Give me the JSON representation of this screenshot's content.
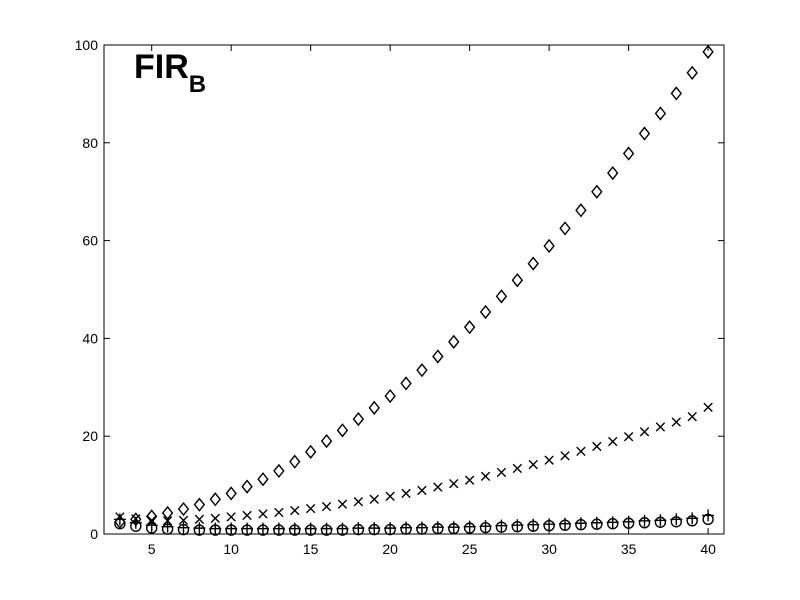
{
  "chart_data": {
    "type": "scatter",
    "title": "FIR",
    "title_subscript": "B",
    "xlim": [
      2,
      41
    ],
    "ylim": [
      0,
      100
    ],
    "x_ticks": [
      5,
      10,
      15,
      20,
      25,
      30,
      35,
      40
    ],
    "y_ticks": [
      0,
      20,
      40,
      60,
      80,
      100
    ],
    "grid": false,
    "x": [
      3,
      4,
      5,
      6,
      7,
      8,
      9,
      10,
      11,
      12,
      13,
      14,
      15,
      16,
      17,
      18,
      19,
      20,
      21,
      22,
      23,
      24,
      25,
      26,
      27,
      28,
      29,
      30,
      31,
      32,
      33,
      34,
      35,
      36,
      37,
      38,
      39,
      40
    ],
    "series": [
      {
        "marker": "diamond",
        "values": [
          2.5,
          3.0,
          3.6,
          4.3,
          5.1,
          6.0,
          7.1,
          8.3,
          9.7,
          11.2,
          12.9,
          14.8,
          16.8,
          19.0,
          21.2,
          23.5,
          25.8,
          28.2,
          30.8,
          33.5,
          36.3,
          39.3,
          42.3,
          45.4,
          48.6,
          51.9,
          55.3,
          58.9,
          62.5,
          66.2,
          70.0,
          73.8,
          77.8,
          81.9,
          86.0,
          90.1,
          94.3,
          98.6
        ]
      },
      {
        "marker": "x",
        "values": [
          3.5,
          3.1,
          2.8,
          2.7,
          2.8,
          3.0,
          3.2,
          3.5,
          3.8,
          4.1,
          4.4,
          4.8,
          5.2,
          5.6,
          6.1,
          6.6,
          7.1,
          7.7,
          8.3,
          8.9,
          9.6,
          10.3,
          11.0,
          11.8,
          12.6,
          13.4,
          14.2,
          15.1,
          16.0,
          16.9,
          17.9,
          18.9,
          19.9,
          20.9,
          21.9,
          22.9,
          24.0,
          25.9
        ]
      },
      {
        "marker": "plus",
        "values": [
          3.0,
          2.3,
          1.8,
          1.5,
          1.3,
          1.2,
          1.1,
          1.1,
          1.1,
          1.1,
          1.1,
          1.1,
          1.1,
          1.1,
          1.1,
          1.2,
          1.2,
          1.2,
          1.3,
          1.3,
          1.4,
          1.4,
          1.5,
          1.6,
          1.7,
          1.8,
          1.9,
          2.0,
          2.1,
          2.2,
          2.3,
          2.4,
          2.5,
          2.7,
          2.8,
          3.0,
          3.2,
          3.8
        ]
      },
      {
        "marker": "circle",
        "values": [
          2.1,
          1.6,
          1.2,
          1.0,
          0.9,
          0.8,
          0.8,
          0.8,
          0.8,
          0.8,
          0.8,
          0.8,
          0.8,
          0.8,
          0.8,
          0.9,
          0.9,
          0.9,
          1.0,
          1.0,
          1.1,
          1.1,
          1.2,
          1.3,
          1.4,
          1.5,
          1.6,
          1.7,
          1.8,
          1.9,
          2.0,
          2.1,
          2.2,
          2.3,
          2.4,
          2.5,
          2.7,
          3.0
        ]
      }
    ]
  }
}
